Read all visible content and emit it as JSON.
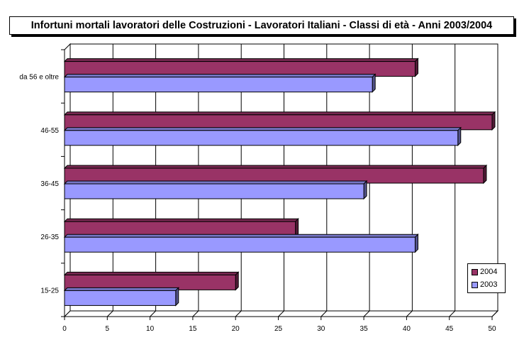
{
  "chart_data": {
    "type": "bar",
    "orientation": "horizontal",
    "title": "Infortuni mortali lavoratori delle Costruzioni - Lavoratori Italiani - Classi di età - Anni 2003/2004",
    "categories": [
      "15-25",
      "26-35",
      "36-45",
      "46-55",
      "da 56 e oltre"
    ],
    "series": [
      {
        "name": "2004",
        "values": [
          20,
          27,
          49,
          50,
          41
        ],
        "color": "#993366"
      },
      {
        "name": "2003",
        "values": [
          13,
          41,
          35,
          46,
          36
        ],
        "color": "#9999FF"
      }
    ],
    "xlim": [
      0,
      50
    ],
    "x_ticks": [
      "0",
      "5",
      "10",
      "15",
      "20",
      "25",
      "30",
      "35",
      "40",
      "45",
      "50"
    ],
    "grid": true,
    "legend": "right",
    "legend_order": [
      "2004",
      "2003"
    ]
  }
}
